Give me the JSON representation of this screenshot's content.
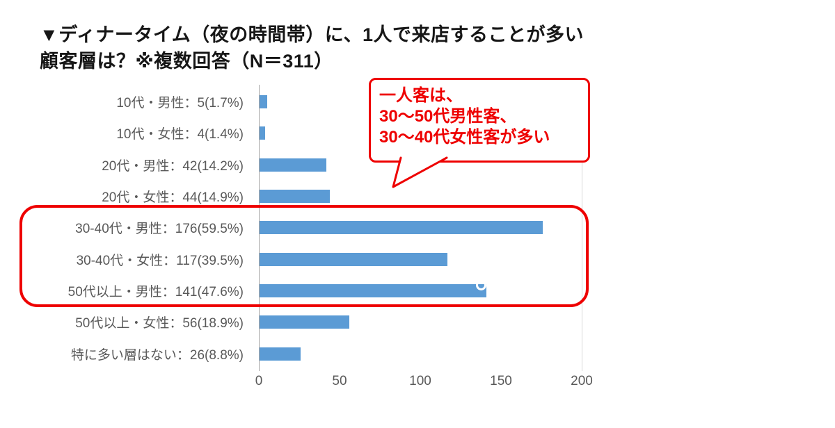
{
  "title": {
    "line1": "▼ディナータイム（夜の時間帯）に、1人で来店することが多い",
    "line2": "顧客層は？※複数回答（N＝311）"
  },
  "chart_data": {
    "type": "bar",
    "orientation": "horizontal",
    "title": "ディナータイム（夜の時間帯）に、1人で来店することが多い顧客層は？※複数回答（N＝311）",
    "categories": [
      "10代・男性：5(1.7%)",
      "10代・女性：4(1.4%)",
      "20代・男性：42(14.2%)",
      "20代・女性：44(14.9%)",
      "30-40代・男性：176(59.5%)",
      "30-40代・女性：117(39.5%)",
      "50代以上・男性：141(47.6%)",
      "50代以上・女性：56(18.9%)",
      "特に多い層はない：26(8.8%)"
    ],
    "values": [
      5,
      4,
      42,
      44,
      176,
      117,
      141,
      56,
      26
    ],
    "percentages": [
      1.7,
      1.4,
      14.2,
      14.9,
      59.5,
      39.5,
      47.6,
      18.9,
      8.8
    ],
    "n": 311,
    "x_ticks": [
      0,
      50,
      100,
      150,
      200
    ],
    "xlim": [
      0,
      200
    ],
    "bar_color": "#5B9BD5",
    "label_color": "#595959",
    "grid": false,
    "legend": false,
    "highlighted_categories": [
      "30-40代・男性：176(59.5%)",
      "30-40代・女性：117(39.5%)",
      "50代以上・男性：141(47.6%)"
    ],
    "highlight_color": "#ee0000"
  },
  "annotation": {
    "lines": [
      "一人客は、",
      "30〜50代男性客、",
      "30〜40代女性客が多い"
    ],
    "color": "#ee0000"
  }
}
